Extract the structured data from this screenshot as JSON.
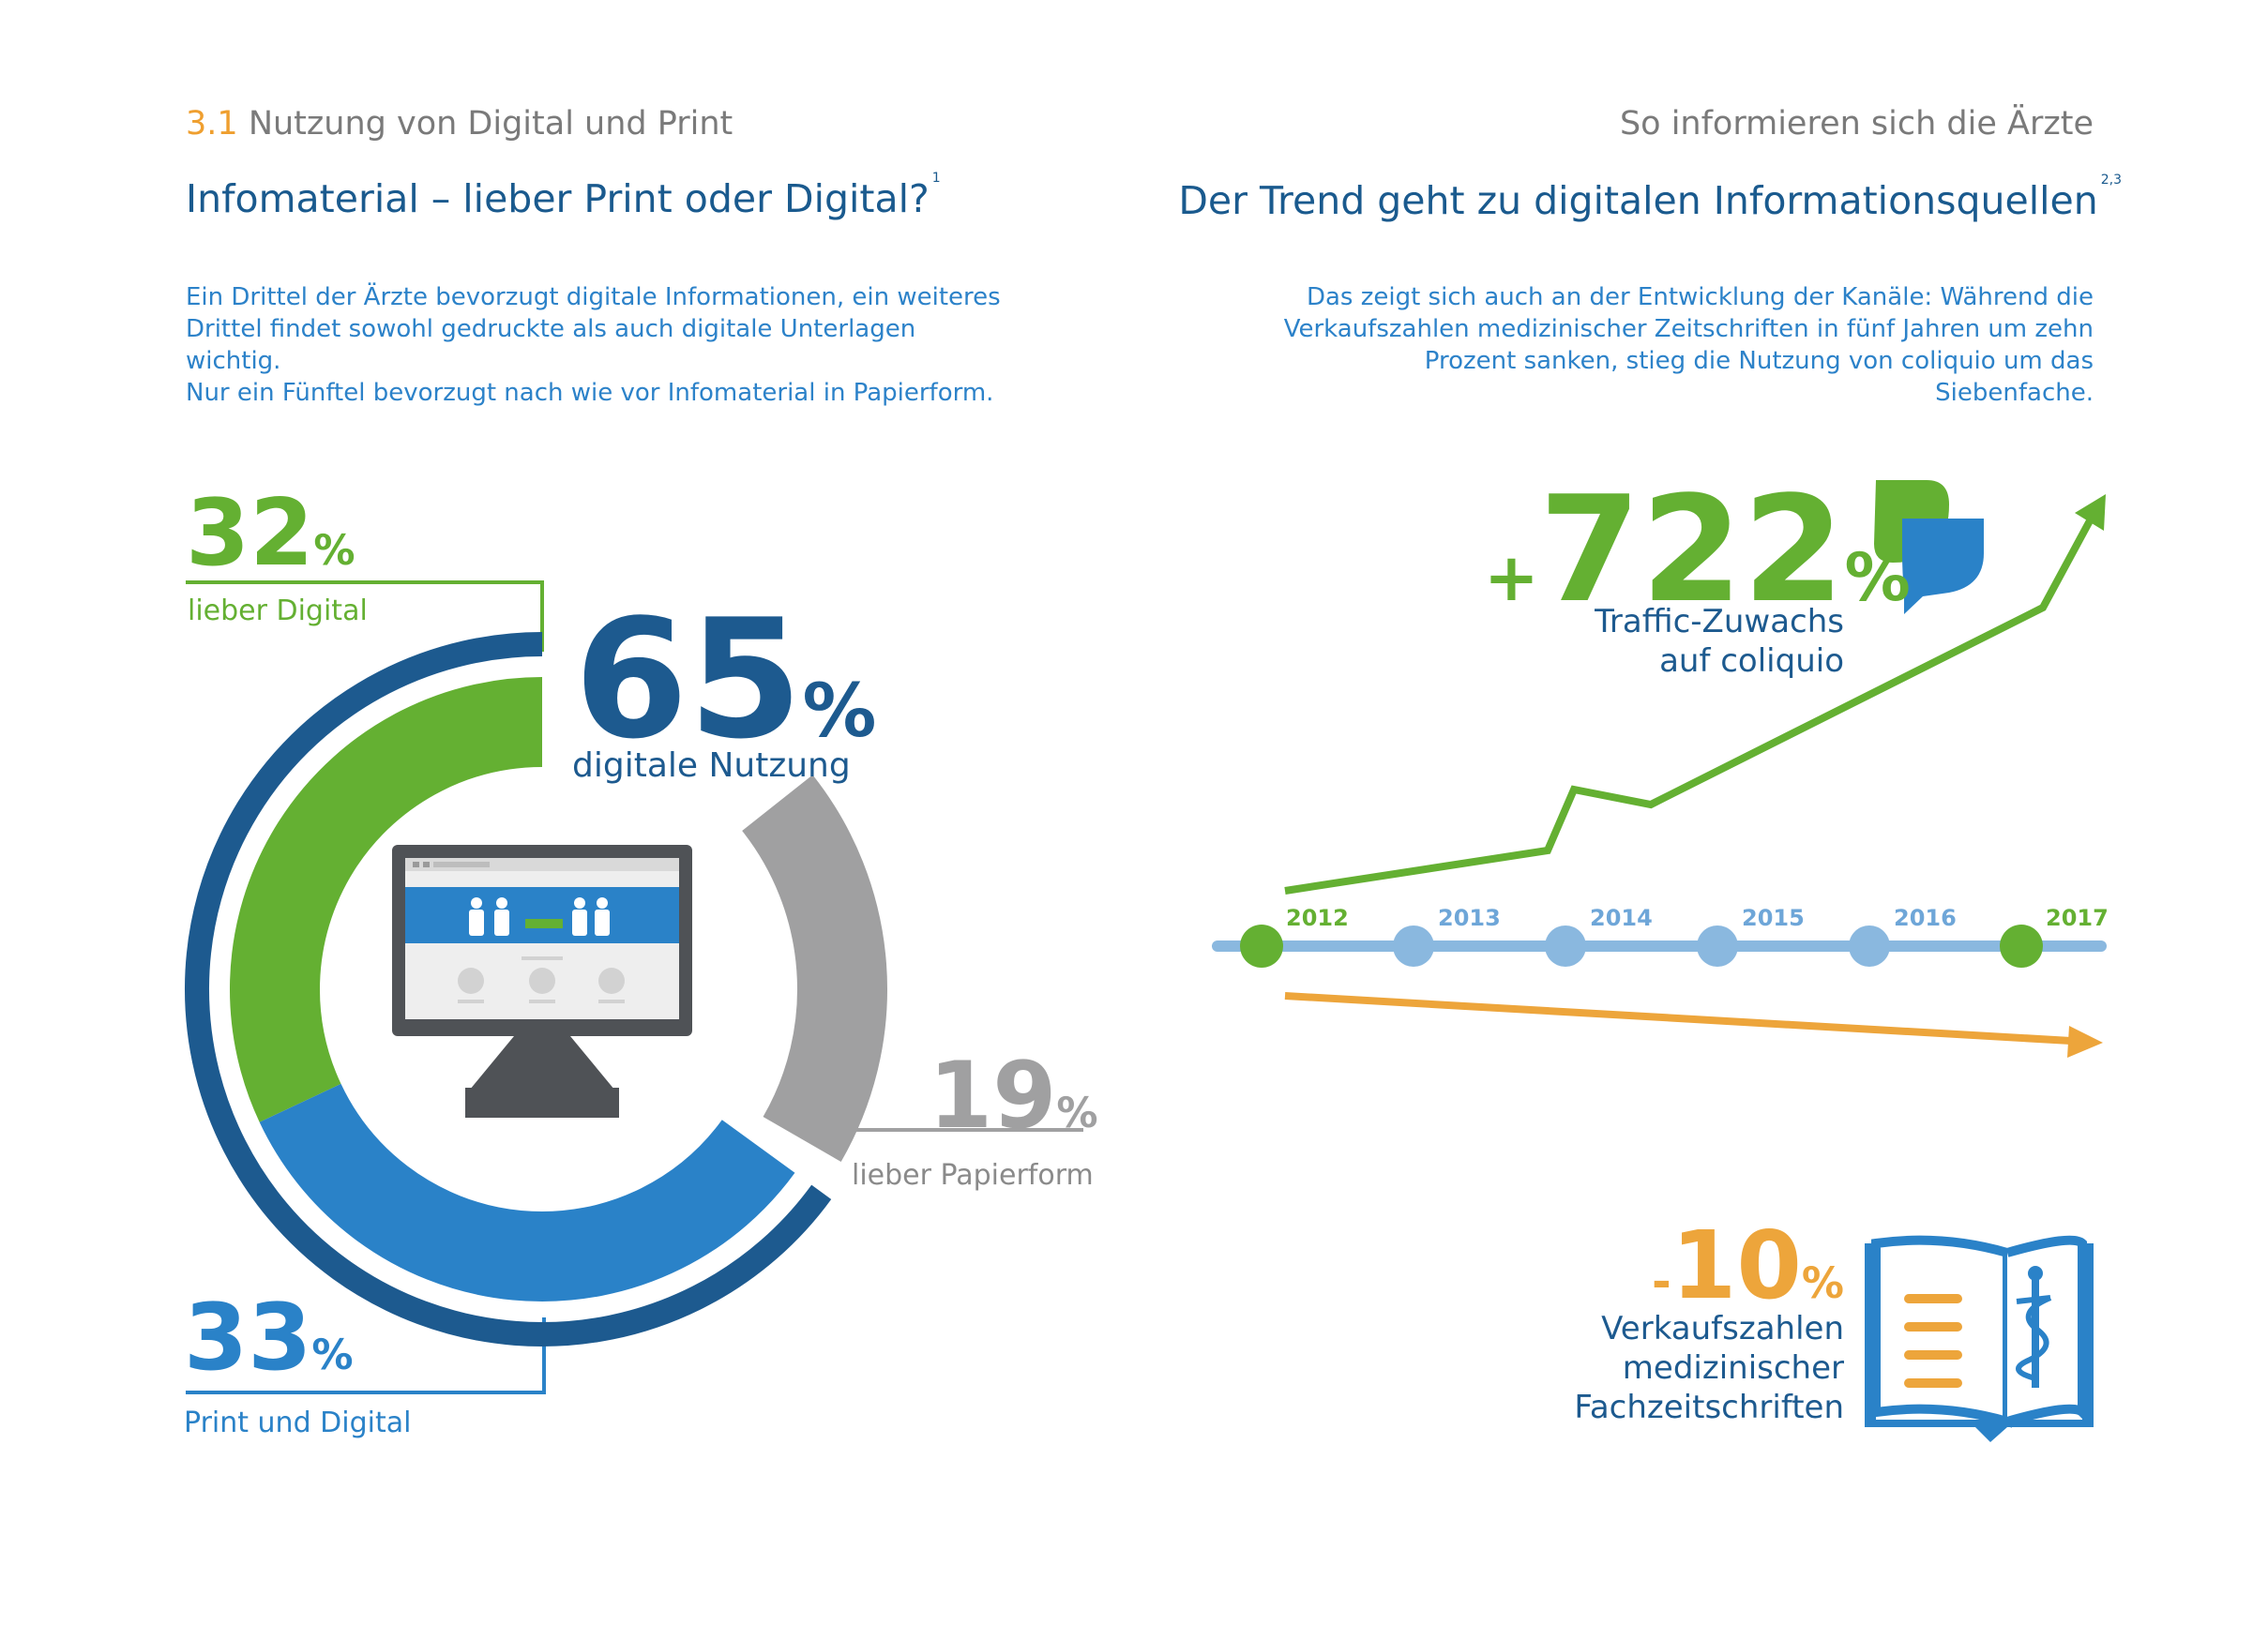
{
  "left": {
    "section_number": "3.1",
    "section_title": "Nutzung von Digital und Print",
    "heading": "Infomaterial – lieber Print oder Digital?",
    "heading_sup": "1",
    "intro_lines": [
      "Ein Drittel der Ärzte bevorzugt digitale Informationen, ein weiteres",
      "Drittel findet sowohl gedruckte als auch digitale Unterlagen wichtig.",
      "Nur ein Fünftel bevorzugt nach wie vor Infomaterial in Papierform."
    ]
  },
  "right": {
    "section_title": "So informieren sich die Ärzte",
    "heading": "Der Trend geht zu digitalen Informationsquellen",
    "heading_sup": "2,3",
    "intro_lines": [
      "Das zeigt sich auch an der Entwicklung der Kanäle: Während die",
      "Verkaufszahlen medizinischer Zeitschriften in fünf Jahren um zehn",
      "Prozent sanken, stieg die Nutzung von coliquio um das Siebenfache."
    ]
  },
  "colors": {
    "green": "#64b032",
    "dark_blue": "#1d5a8f",
    "mid_blue": "#2a82c8",
    "grey": "#a0a0a1",
    "orange": "#eda53b",
    "timeline": "#8ab8df"
  },
  "icons": [
    "desktop-monitor-icon",
    "coliquio-logo-icon",
    "medical-book-icon"
  ],
  "chart_data": [
    {
      "type": "pie",
      "title": "",
      "slices": [
        {
          "value": 32,
          "display": "32",
          "unit": "%",
          "label": "lieber Digital",
          "color": "#64b032"
        },
        {
          "value": 33,
          "display": "33",
          "unit": "%",
          "label": "Print und Digital",
          "color": "#2a82c8"
        },
        {
          "value": 19,
          "display": "19",
          "unit": "%",
          "label": "lieber Papierform",
          "color": "#a0a0a1"
        }
      ],
      "total_digital": {
        "value": 65,
        "display": "65",
        "unit": "%",
        "label": "digitale Nutzung"
      }
    },
    {
      "type": "line",
      "title": "",
      "x": [
        "2012",
        "2013",
        "2014",
        "2015",
        "2016",
        "2017"
      ],
      "series": [
        {
          "value_display": "722",
          "prefix": "+",
          "unit": "%",
          "label_lines": [
            "Traffic-Zuwachs",
            "auf coliquio"
          ],
          "color": "#64b032"
        },
        {
          "value_display": "10",
          "prefix": "-",
          "unit": "%",
          "label_lines": [
            "Verkaufszahlen",
            "medizinischer",
            "Fachzeitschriften"
          ],
          "color": "#eda53b"
        }
      ]
    }
  ]
}
